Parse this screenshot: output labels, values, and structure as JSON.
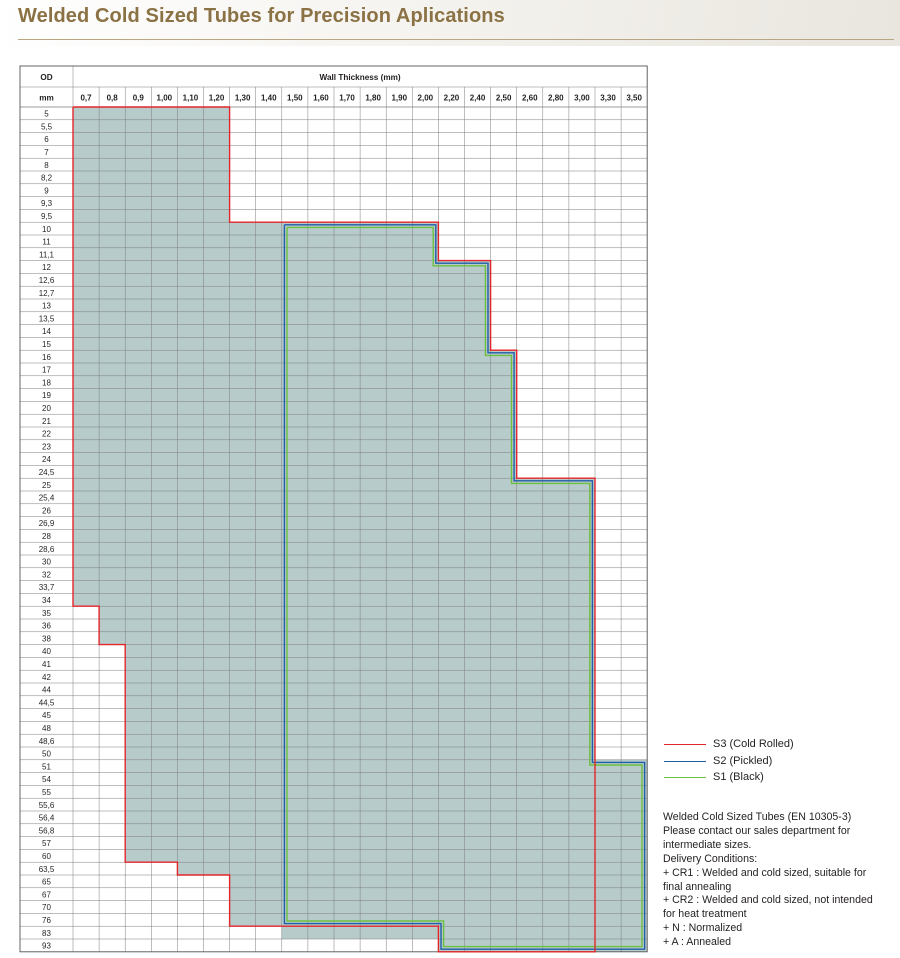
{
  "title": "Welded Cold Sized Tubes for Precision Aplications",
  "table": {
    "od_header": "OD",
    "od_unit": "mm",
    "wall_header": "Wall Thickness (mm)",
    "wall_thickness": [
      "0,7",
      "0,8",
      "0,9",
      "1,00",
      "1,10",
      "1,20",
      "1,30",
      "1,40",
      "1,50",
      "1,60",
      "1,70",
      "1,80",
      "1,90",
      "2,00",
      "2,20",
      "2,40",
      "2,50",
      "2,60",
      "2,80",
      "3,00",
      "3,30",
      "3,50"
    ],
    "od_values": [
      "5",
      "5,5",
      "6",
      "7",
      "8",
      "8,2",
      "9",
      "9,3",
      "9,5",
      "10",
      "11",
      "11,1",
      "12",
      "12,6",
      "12,7",
      "13",
      "13,5",
      "14",
      "15",
      "16",
      "17",
      "18",
      "19",
      "20",
      "21",
      "22",
      "23",
      "24",
      "24,5",
      "25",
      "25,4",
      "26",
      "26,9",
      "28",
      "28,6",
      "30",
      "32",
      "33,7",
      "34",
      "35",
      "36",
      "38",
      "40",
      "41",
      "42",
      "44",
      "44,5",
      "45",
      "48",
      "48,6",
      "50",
      "51",
      "54",
      "55",
      "55,6",
      "56,4",
      "56,8",
      "57",
      "60",
      "63,5",
      "65",
      "67",
      "70",
      "76",
      "83",
      "93"
    ]
  },
  "chart_data": {
    "type": "table",
    "x_categories_label": "Wall Thickness (mm)",
    "y_categories_label": "OD",
    "fill_color": "#b7cbcb",
    "availability_ranges": [
      {
        "od_from": "5",
        "od_to": "9,5",
        "wall_from": "0,7",
        "wall_to": "1,20"
      },
      {
        "od_from": "10",
        "od_to": "11,1",
        "wall_from": "0,7",
        "wall_to": "2,00"
      },
      {
        "od_from": "12",
        "od_to": "15",
        "wall_from": "0,7",
        "wall_to": "2,40"
      },
      {
        "od_from": "16",
        "od_to": "24,5",
        "wall_from": "0,7",
        "wall_to": "2,50"
      },
      {
        "od_from": "25",
        "od_to": "34",
        "wall_from": "0,7",
        "wall_to": "3,00"
      },
      {
        "od_from": "35",
        "od_to": "38",
        "wall_from": "0,8",
        "wall_to": "3,00"
      },
      {
        "od_from": "40",
        "od_to": "50",
        "wall_from": "0,9",
        "wall_to": "3,00"
      },
      {
        "od_from": "51",
        "od_to": "60",
        "wall_from": "0,9",
        "wall_to": "3,50"
      },
      {
        "od_from": "63,5",
        "od_to": "63,5",
        "wall_from": "1,10",
        "wall_to": "3,50"
      },
      {
        "od_from": "65",
        "od_to": "76",
        "wall_from": "1,30",
        "wall_to": "3,50"
      },
      {
        "od_from": "83",
        "od_to": "83",
        "wall_from": "1,50",
        "wall_to": "3,50"
      },
      {
        "od_from": "93",
        "od_to": "93",
        "wall_from": "2,20",
        "wall_to": "3,50"
      }
    ],
    "series": [
      {
        "name": "S3 (Cold Rolled)",
        "color": "#e3262b",
        "boundary_points": [
          [
            "0,7",
            "5"
          ],
          [
            "1,20",
            "5"
          ],
          [
            "1,20",
            "9,5"
          ],
          [
            "2,00",
            "9,5"
          ],
          [
            "2,00",
            "11,1"
          ],
          [
            "2,40",
            "11,1"
          ],
          [
            "2,40",
            "15"
          ],
          [
            "2,50",
            "15"
          ],
          [
            "2,50",
            "24,5"
          ],
          [
            "3,00",
            "24,5"
          ],
          [
            "3,00",
            "93"
          ],
          [
            "2,20",
            "93"
          ],
          [
            "2,20",
            "83"
          ],
          [
            "1,30",
            "83"
          ],
          [
            "1,30",
            "63,5"
          ],
          [
            "1,10",
            "63,5"
          ],
          [
            "1,10",
            "60"
          ],
          [
            "0,9",
            "60"
          ],
          [
            "0,9",
            "38"
          ],
          [
            "0,8",
            "38"
          ],
          [
            "0,8",
            "34"
          ],
          [
            "0,7",
            "34"
          ],
          [
            "0,7",
            "5"
          ]
        ]
      },
      {
        "name": "S2 (Pickled)",
        "color": "#1f5ea8",
        "boundary_points": [
          [
            "1,50",
            "9,5"
          ],
          [
            "2,00",
            "9,5"
          ],
          [
            "2,00",
            "11,1"
          ],
          [
            "2,40",
            "11,1"
          ],
          [
            "2,40",
            "15"
          ],
          [
            "2,50",
            "15"
          ],
          [
            "2,50",
            "24,5"
          ],
          [
            "3,00",
            "24,5"
          ],
          [
            "3,00",
            "50"
          ],
          [
            "3,50",
            "50"
          ],
          [
            "3,50",
            "93"
          ],
          [
            "2,20",
            "93"
          ],
          [
            "2,20",
            "76"
          ],
          [
            "1,50",
            "76"
          ],
          [
            "1,50",
            "9,5"
          ]
        ]
      },
      {
        "name": "S1 (Black)",
        "color": "#6cbf3f",
        "boundary_points": [
          [
            "1,50",
            "9,5"
          ],
          [
            "2,00",
            "9,5"
          ],
          [
            "2,00",
            "11,1"
          ],
          [
            "2,40",
            "11,1"
          ],
          [
            "2,40",
            "15"
          ],
          [
            "2,50",
            "15"
          ],
          [
            "2,50",
            "24,5"
          ],
          [
            "3,00",
            "24,5"
          ],
          [
            "3,00",
            "50"
          ],
          [
            "3,50",
            "50"
          ],
          [
            "3,50",
            "93"
          ],
          [
            "2,20",
            "93"
          ],
          [
            "2,20",
            "76"
          ],
          [
            "1,50",
            "76"
          ],
          [
            "1,50",
            "9,5"
          ]
        ]
      }
    ]
  },
  "legend": [
    {
      "label": "S3 (Cold Rolled)",
      "color": "#e3262b"
    },
    {
      "label": "S2 (Pickled)",
      "color": "#1f5ea8"
    },
    {
      "label": "S1 (Black)",
      "color": "#6cbf3f"
    }
  ],
  "notes": [
    "Welded Cold Sized Tubes (EN 10305-3)",
    "Please contact our sales department for",
    "intermediate sizes.",
    "Delivery Conditions:",
    "+ CR1 : Welded and cold sized, suitable for",
    "final annealing",
    "+ CR2 : Welded and cold sized, not intended",
    "for heat treatment",
    "+ N : Normalized",
    "+ A : Annealed"
  ]
}
